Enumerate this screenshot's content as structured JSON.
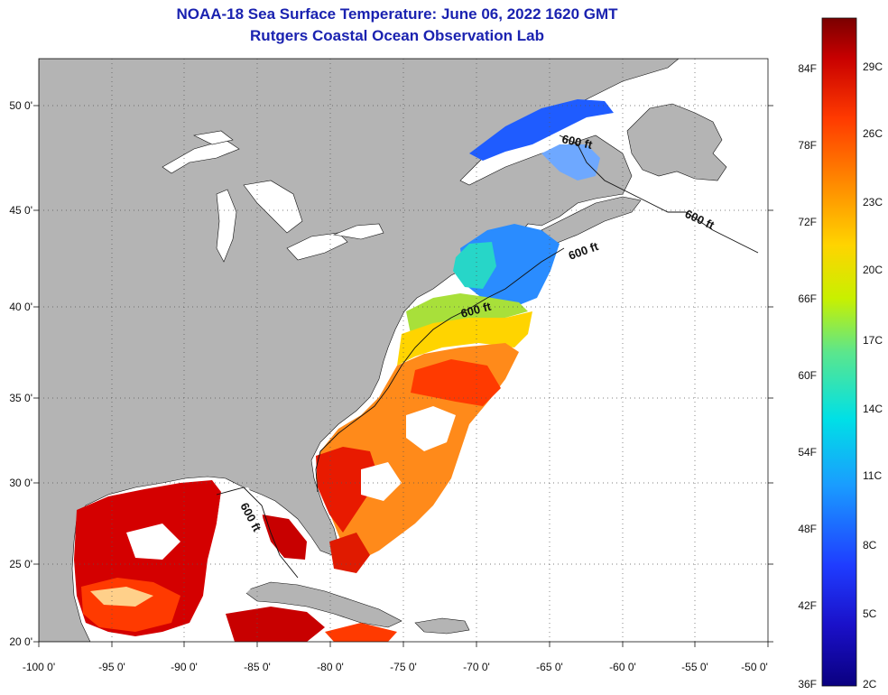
{
  "title_line1": "NOAA-18 Sea Surface Temperature:  June 06, 2022 1620 GMT",
  "title_line2": "Rutgers Coastal Ocean Observation Lab",
  "lat_labels": [
    "50 0'",
    "45 0'",
    "40 0'",
    "35 0'",
    "30 0'",
    "25 0'",
    "20 0'"
  ],
  "lon_labels": [
    "-100 0'",
    "-95 0'",
    "-90 0'",
    "-85 0'",
    "-80 0'",
    "-75 0'",
    "-70 0'",
    "-65 0'",
    "-60 0'",
    "-55 0'",
    "-50 0'"
  ],
  "contour_label": "600 ft",
  "colorbar": {
    "fahrenheit": [
      "84F",
      "78F",
      "72F",
      "66F",
      "60F",
      "54F",
      "48F",
      "42F",
      "36F"
    ],
    "celsius": [
      "29C",
      "26C",
      "23C",
      "20C",
      "17C",
      "14C",
      "11C",
      "8C",
      "5C",
      "2C"
    ],
    "colors": [
      "#7a0000",
      "#c80000",
      "#ff3a00",
      "#ff8c00",
      "#ffd400",
      "#c8f000",
      "#5ce68c",
      "#00e0e6",
      "#1a9cff",
      "#1f3cff",
      "#1a10c8",
      "#0a0080"
    ]
  },
  "colors": {
    "land": "#b4b4b4",
    "ocean": "#ffffff",
    "title": "#1a22b0"
  }
}
